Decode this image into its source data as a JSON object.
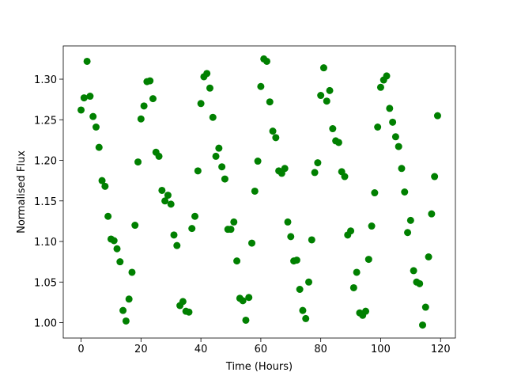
{
  "chart_data": {
    "type": "scatter",
    "x_label": "Time (Hours)",
    "y_label": "Normalised Flux",
    "color": "#008000",
    "x": [
      0,
      1,
      2,
      3,
      4,
      5,
      6,
      7,
      8,
      9,
      10,
      11,
      12,
      13,
      14,
      15,
      16,
      17,
      18,
      19,
      20,
      21,
      22,
      23,
      24,
      25,
      26,
      27,
      28,
      29,
      30,
      31,
      32,
      33,
      34,
      35,
      36,
      37,
      38,
      39,
      40,
      41,
      42,
      43,
      44,
      45,
      46,
      47,
      48,
      49,
      50,
      51,
      52,
      53,
      54,
      55,
      56,
      57,
      58,
      59,
      60,
      61,
      62,
      63,
      64,
      65,
      66,
      67,
      68,
      69,
      70,
      71,
      72,
      73,
      74,
      75,
      76,
      77,
      78,
      79,
      80,
      81,
      82,
      83,
      84,
      85,
      86,
      87,
      88,
      89,
      90,
      91,
      92,
      93,
      94,
      95,
      96,
      97,
      98,
      99,
      100,
      101,
      102,
      103,
      104,
      105,
      106,
      107,
      108,
      109,
      110,
      111,
      112,
      113,
      114,
      115,
      116,
      117,
      118,
      119
    ],
    "values": [
      1.262,
      1.277,
      1.322,
      1.279,
      1.254,
      1.241,
      1.216,
      1.175,
      1.168,
      1.131,
      1.103,
      1.101,
      1.091,
      1.075,
      1.015,
      1.002,
      1.029,
      1.062,
      1.12,
      1.198,
      1.251,
      1.267,
      1.297,
      1.298,
      1.276,
      1.21,
      1.205,
      1.163,
      1.15,
      1.157,
      1.146,
      1.108,
      1.095,
      1.021,
      1.026,
      1.014,
      1.013,
      1.116,
      1.131,
      1.187,
      1.27,
      1.303,
      1.307,
      1.289,
      1.253,
      1.205,
      1.215,
      1.192,
      1.177,
      1.115,
      1.115,
      1.124,
      1.076,
      1.03,
      1.027,
      1.003,
      1.031,
      1.098,
      1.162,
      1.199,
      1.291,
      1.325,
      1.322,
      1.272,
      1.236,
      1.228,
      1.187,
      1.184,
      1.19,
      1.124,
      1.106,
      1.076,
      1.077,
      1.041,
      1.015,
      1.005,
      1.05,
      1.102,
      1.185,
      1.197,
      1.28,
      1.314,
      1.273,
      1.286,
      1.239,
      1.224,
      1.222,
      1.186,
      1.18,
      1.108,
      1.113,
      1.043,
      1.062,
      1.012,
      1.009,
      1.014,
      1.078,
      1.119,
      1.16,
      1.241,
      1.29,
      1.299,
      1.304,
      1.264,
      1.247,
      1.229,
      1.217,
      1.19,
      1.161,
      1.111,
      1.126,
      1.064,
      1.05,
      1.048,
      0.997,
      1.019,
      1.081,
      1.134,
      1.18,
      1.255
    ],
    "xlim": [
      -5.95,
      124.95
    ],
    "xticks": [
      0,
      20,
      40,
      60,
      80,
      100,
      120
    ],
    "ylim": [
      0.981,
      1.341
    ],
    "yticks": [
      {
        "value": 1,
        "label": "1.00"
      },
      1.05,
      {
        "value": 1.1,
        "label": "1.10"
      },
      1.15,
      {
        "value": 1.2,
        "label": "1.20"
      },
      1.25,
      {
        "value": 1.3,
        "label": "1.30"
      }
    ]
  }
}
